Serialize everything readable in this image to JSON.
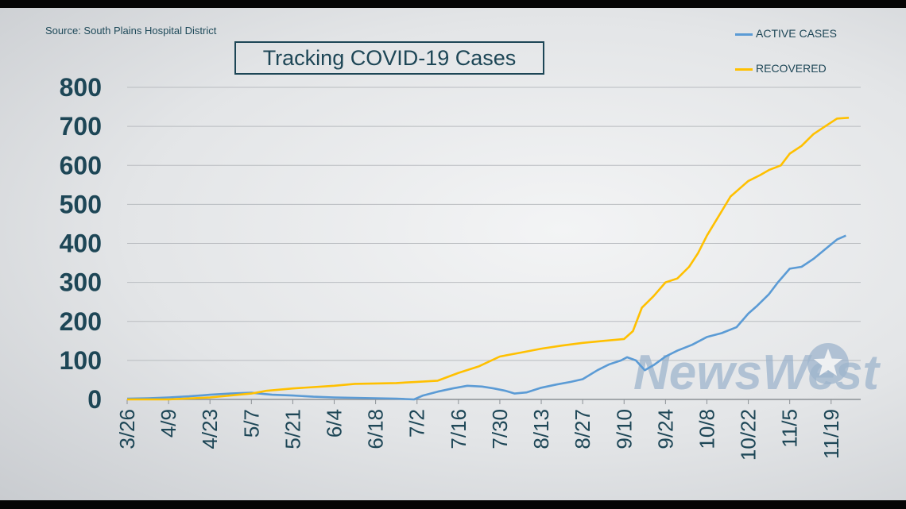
{
  "source": "Source: South Plains Hospital District",
  "title": "Tracking COVID-19 Cases",
  "watermark": "NewsWest",
  "colors": {
    "active": "#5b9bd5",
    "recovered": "#ffc000",
    "text": "#1d4656",
    "grid": "#b9bcc0"
  },
  "chart_data": {
    "type": "line",
    "title": "Tracking COVID-19 Cases",
    "xlabel": "",
    "ylabel": "",
    "ylim": [
      0,
      800
    ],
    "yticks": [
      "0",
      "100",
      "200",
      "300",
      "400",
      "500",
      "600",
      "700",
      "800"
    ],
    "x_tick_labels": [
      "3/26",
      "4/9",
      "4/23",
      "5/7",
      "5/21",
      "6/4",
      "6/18",
      "7/2",
      "7/16",
      "7/30",
      "8/13",
      "8/27",
      "9/10",
      "9/24",
      "10/8",
      "10/22",
      "11/5",
      "11/19"
    ],
    "x_range": [
      "3/26",
      "11/25"
    ],
    "grid": true,
    "legend_position": "top-right",
    "series": [
      {
        "name": "ACTIVE CASES",
        "color": "#5b9bd5",
        "points": [
          [
            "3/26",
            2
          ],
          [
            "4/2",
            3
          ],
          [
            "4/9",
            5
          ],
          [
            "4/16",
            8
          ],
          [
            "4/23",
            12
          ],
          [
            "4/30",
            15
          ],
          [
            "5/7",
            17
          ],
          [
            "5/11",
            14
          ],
          [
            "5/14",
            12
          ],
          [
            "5/21",
            10
          ],
          [
            "5/28",
            7
          ],
          [
            "6/4",
            5
          ],
          [
            "6/11",
            4
          ],
          [
            "6/18",
            3
          ],
          [
            "6/25",
            2
          ],
          [
            "6/28",
            1
          ],
          [
            "7/1",
            0
          ],
          [
            "7/4",
            10
          ],
          [
            "7/9",
            20
          ],
          [
            "7/14",
            28
          ],
          [
            "7/19",
            35
          ],
          [
            "7/24",
            33
          ],
          [
            "7/28",
            28
          ],
          [
            "8/1",
            22
          ],
          [
            "8/4",
            15
          ],
          [
            "8/8",
            18
          ],
          [
            "8/13",
            30
          ],
          [
            "8/18",
            38
          ],
          [
            "8/23",
            45
          ],
          [
            "8/27",
            52
          ],
          [
            "9/1",
            75
          ],
          [
            "9/5",
            90
          ],
          [
            "9/9",
            100
          ],
          [
            "9/11",
            108
          ],
          [
            "9/14",
            100
          ],
          [
            "9/17",
            75
          ],
          [
            "9/20",
            88
          ],
          [
            "9/24",
            110
          ],
          [
            "9/28",
            125
          ],
          [
            "10/3",
            140
          ],
          [
            "10/8",
            160
          ],
          [
            "10/13",
            170
          ],
          [
            "10/18",
            185
          ],
          [
            "10/22",
            220
          ],
          [
            "10/25",
            240
          ],
          [
            "10/29",
            270
          ],
          [
            "11/1",
            300
          ],
          [
            "11/5",
            335
          ],
          [
            "11/9",
            340
          ],
          [
            "11/13",
            360
          ],
          [
            "11/17",
            385
          ],
          [
            "11/21",
            410
          ],
          [
            "11/24",
            420
          ]
        ]
      },
      {
        "name": "RECOVERED",
        "color": "#ffc000",
        "points": [
          [
            "3/26",
            0
          ],
          [
            "4/9",
            0
          ],
          [
            "4/23",
            5
          ],
          [
            "5/7",
            15
          ],
          [
            "5/12",
            22
          ],
          [
            "5/21",
            28
          ],
          [
            "6/4",
            35
          ],
          [
            "6/11",
            40
          ],
          [
            "6/25",
            42
          ],
          [
            "7/2",
            45
          ],
          [
            "7/9",
            48
          ],
          [
            "7/16",
            68
          ],
          [
            "7/23",
            85
          ],
          [
            "7/30",
            110
          ],
          [
            "8/6",
            120
          ],
          [
            "8/13",
            130
          ],
          [
            "8/20",
            138
          ],
          [
            "8/27",
            145
          ],
          [
            "9/3",
            150
          ],
          [
            "9/10",
            155
          ],
          [
            "9/13",
            175
          ],
          [
            "9/16",
            235
          ],
          [
            "9/20",
            265
          ],
          [
            "9/24",
            300
          ],
          [
            "9/28",
            310
          ],
          [
            "10/2",
            340
          ],
          [
            "10/5",
            375
          ],
          [
            "10/8",
            420
          ],
          [
            "10/12",
            470
          ],
          [
            "10/16",
            520
          ],
          [
            "10/19",
            540
          ],
          [
            "10/22",
            560
          ],
          [
            "10/26",
            575
          ],
          [
            "10/29",
            588
          ],
          [
            "11/2",
            600
          ],
          [
            "11/5",
            630
          ],
          [
            "11/9",
            650
          ],
          [
            "11/13",
            680
          ],
          [
            "11/17",
            700
          ],
          [
            "11/21",
            720
          ],
          [
            "11/25",
            722
          ]
        ]
      }
    ]
  }
}
